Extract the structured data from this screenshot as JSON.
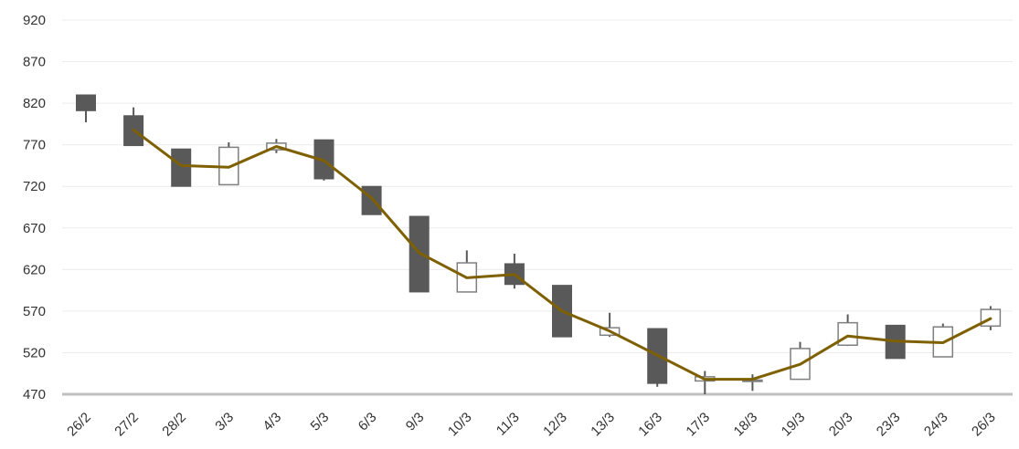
{
  "colors": {
    "down_fill": "#595959",
    "up_fill": "#ffffff",
    "up_stroke": "#7f7f7f",
    "wick": "#595959",
    "line": "#7f6000",
    "grid": "#ececec",
    "baseline": "#bfbfbf",
    "text": "#333333"
  },
  "chart_data": {
    "type": "candlestick",
    "title": "",
    "xlabel": "",
    "ylabel": "",
    "ylim": [
      470,
      920
    ],
    "yticks": [
      470,
      520,
      570,
      620,
      670,
      720,
      770,
      820,
      870,
      920
    ],
    "ytick_labels": [
      "470",
      "520",
      "570",
      "620",
      "670",
      "720",
      "770",
      "820",
      "870",
      "920"
    ],
    "grid": true,
    "legend": "none",
    "categories": [
      "26/2",
      "27/2",
      "28/2",
      "3/3",
      "4/3",
      "5/3",
      "6/3",
      "9/3",
      "10/3",
      "11/3",
      "12/3",
      "13/3",
      "16/3",
      "17/3",
      "18/3",
      "19/3",
      "20/3",
      "23/3",
      "24/3",
      "26/3"
    ],
    "open": [
      830,
      805,
      765,
      722,
      764,
      776,
      720,
      684,
      593,
      627,
      601,
      541,
      549,
      486,
      487,
      488,
      529,
      553,
      515,
      552
    ],
    "close": [
      811,
      769,
      720,
      767,
      772,
      729,
      686,
      593,
      628,
      602,
      539,
      550,
      483,
      491,
      487,
      525,
      556,
      513,
      551,
      572
    ],
    "high": [
      830,
      815,
      765,
      773,
      777,
      776,
      720,
      684,
      643,
      639,
      601,
      568,
      549,
      498,
      494,
      533,
      566,
      553,
      555,
      576
    ],
    "low": [
      797,
      769,
      720,
      722,
      760,
      727,
      686,
      593,
      593,
      597,
      539,
      539,
      479,
      470,
      474,
      488,
      528,
      513,
      515,
      547
    ],
    "line_series": {
      "values": [
        null,
        788,
        745,
        743,
        768,
        751,
        706,
        640,
        610,
        614,
        570,
        546,
        517,
        488,
        488,
        506,
        540,
        534,
        532,
        561
      ]
    }
  }
}
